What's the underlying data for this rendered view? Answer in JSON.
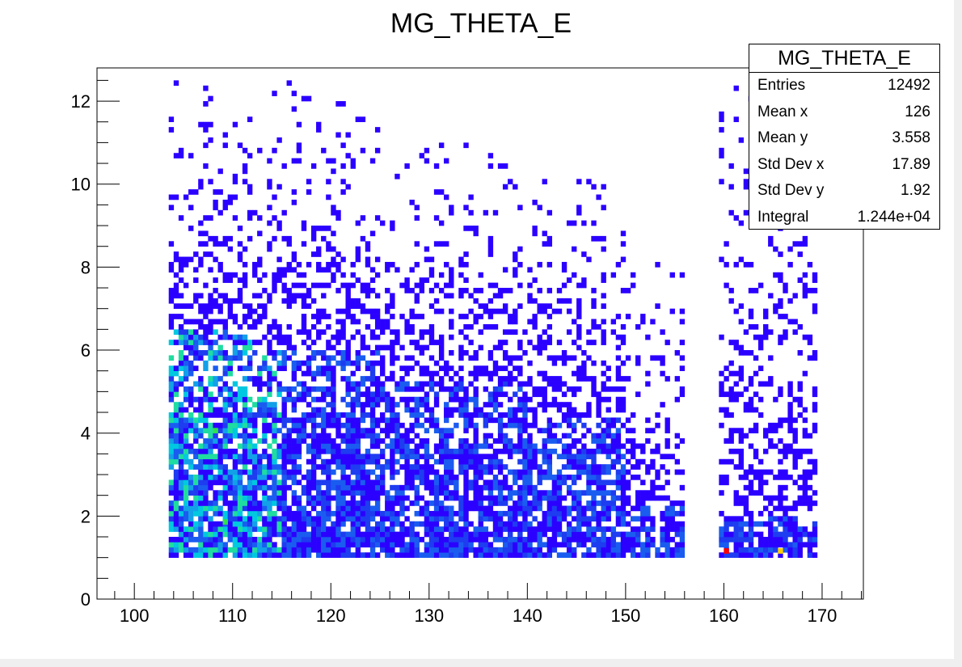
{
  "chart_data": {
    "type": "heatmap",
    "title": "MG_THETA_E",
    "xlabel": "",
    "ylabel": "",
    "xlim": [
      96.2,
      174.2
    ],
    "ylim": [
      0,
      12.8
    ],
    "x_ticks": [
      100,
      110,
      120,
      130,
      140,
      150,
      160,
      170
    ],
    "y_ticks": [
      0,
      2,
      4,
      6,
      8,
      10,
      12
    ],
    "bin_width_x": 0.5,
    "bin_height_y": 0.125,
    "palette": "ROOT kBird-like (blue→cyan→green→yellow→red)",
    "filled_x_range": [
      103.5,
      169.5
    ],
    "gap_x_range": [
      156,
      159.5
    ],
    "occupancy_profile": [
      {
        "x_from": 103.5,
        "x_to": 112,
        "y_max": 12.5,
        "dense_y_max": 6.5
      },
      {
        "x_from": 112,
        "x_to": 125,
        "y_max": 12.4,
        "dense_y_max": 6.0
      },
      {
        "x_from": 125,
        "x_to": 140,
        "y_max": 11.0,
        "dense_y_max": 5.2
      },
      {
        "x_from": 140,
        "x_to": 150,
        "y_max": 10.2,
        "dense_y_max": 4.3
      },
      {
        "x_from": 150,
        "x_to": 156,
        "y_max": 8.4,
        "dense_y_max": 2.2
      },
      {
        "x_from": 159.5,
        "x_to": 169.5,
        "y_max": 12.5,
        "dense_y_max": 2.0
      }
    ],
    "hot_spots": [
      {
        "x": 160,
        "y": 1.1,
        "level": "max"
      },
      {
        "x": 165.5,
        "y": 1.1,
        "level": "high"
      },
      {
        "x": 108,
        "y": 4.0,
        "level": "medium"
      },
      {
        "x": 109,
        "y": 1.8,
        "level": "medium"
      }
    ]
  },
  "stats": {
    "title": "MG_THETA_E",
    "rows": [
      {
        "key": "Entries",
        "value": "12492"
      },
      {
        "key": "Mean x",
        "value": "126"
      },
      {
        "key": "Mean y",
        "value": "3.558"
      },
      {
        "key": "Std Dev x",
        "value": "17.89"
      },
      {
        "key": "Std Dev y",
        "value": "1.92"
      },
      {
        "key": "Integral",
        "value": "1.244e+04"
      }
    ]
  }
}
